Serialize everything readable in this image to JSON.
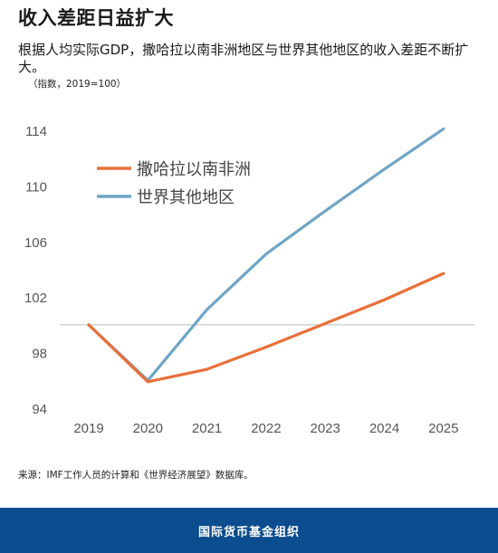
{
  "header": {
    "title": "收入差距日益扩大",
    "subtitle": "根据人均实际GDP，撒哈拉以南非洲地区与世界其他地区的收入差距不断扩大。",
    "unit_note": "（指数，2019=100）"
  },
  "chart_data": {
    "type": "line",
    "x": [
      "2019",
      "2020",
      "2021",
      "2022",
      "2023",
      "2024",
      "2025"
    ],
    "series": [
      {
        "name": "撒哈拉以南非洲",
        "color": "#e8703a",
        "values": [
          100,
          95.9,
          96.8,
          98.4,
          100.1,
          101.8,
          103.7
        ]
      },
      {
        "name": "世界其他地区",
        "color": "#6fa5c6",
        "values": [
          100,
          96.0,
          101.1,
          105.1,
          108.2,
          111.2,
          114.1
        ]
      }
    ],
    "ylim": [
      94,
      115
    ],
    "yticks": [
      "94",
      "98",
      "102",
      "106",
      "110",
      "114"
    ],
    "reference_line": 100,
    "legend_position": "top-left",
    "title": "",
    "xlabel": "",
    "ylabel": ""
  },
  "source": "来源：IMF工作人员的计算和《世界经济展望》数据库。",
  "footer": {
    "label": "国际货币基金组织"
  },
  "colors": {
    "footer_bg": "#0b4d8e",
    "gridline": "#bbbbbb",
    "axis_text": "#555555"
  }
}
